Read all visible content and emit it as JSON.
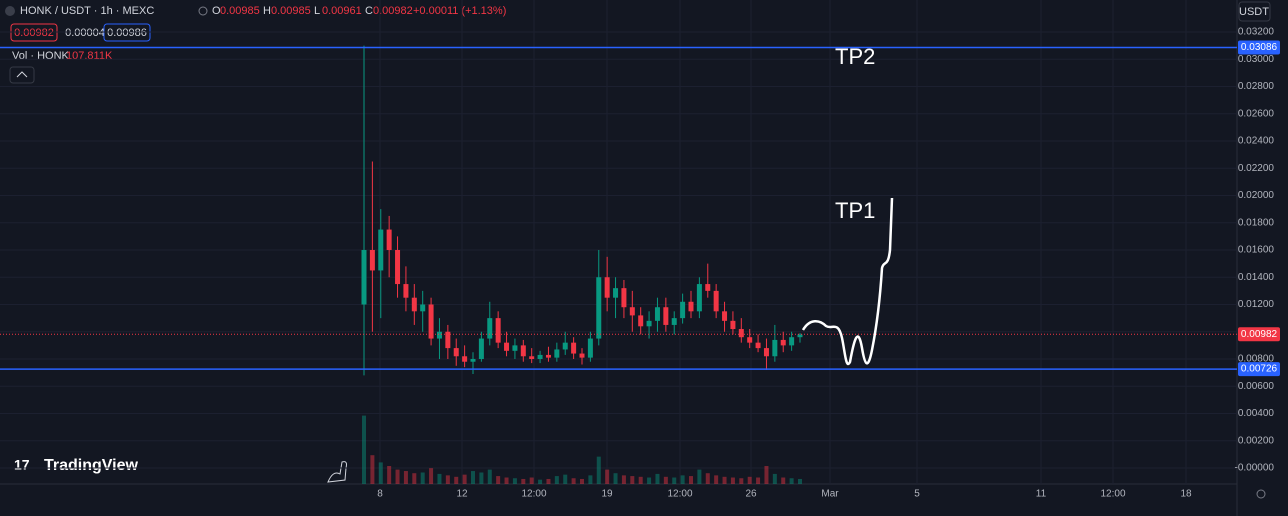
{
  "header": {
    "symbol": "HONK / USDT · 1h · MEXC",
    "ohlc": [
      {
        "key": "O",
        "value": "0.00985"
      },
      {
        "key": "H",
        "value": "0.00985"
      },
      {
        "key": "L",
        "value": "0.00961"
      },
      {
        "key": "C",
        "value": "0.00982"
      }
    ],
    "change": "+0.00011 (+1.13%)",
    "boxes": [
      "0.00982",
      "0.00004",
      "0.00986"
    ],
    "volume_label": "Vol · HONK",
    "volume_value": "107.811K",
    "currency": "USDT",
    "logo": "TradingView"
  },
  "chart_data": {
    "type": "candlestick",
    "annotations": [
      "TP2",
      "TP1"
    ],
    "ylim": [
      -0.0015,
      0.0335
    ],
    "yticks": [
      {
        "value": 0.032,
        "label": "0.03200"
      },
      {
        "value": 0.03,
        "label": "0.03000"
      },
      {
        "value": 0.028,
        "label": "0.02800"
      },
      {
        "value": 0.026,
        "label": "0.02600"
      },
      {
        "value": 0.024,
        "label": "0.02400"
      },
      {
        "value": 0.022,
        "label": "0.02200"
      },
      {
        "value": 0.02,
        "label": "0.02000"
      },
      {
        "value": 0.018,
        "label": "0.01800"
      },
      {
        "value": 0.016,
        "label": "0.01600"
      },
      {
        "value": 0.014,
        "label": "0.01400"
      },
      {
        "value": 0.012,
        "label": "0.01200"
      },
      {
        "value": 0.01,
        "label": "0.01000"
      },
      {
        "value": 0.008,
        "label": "0.00800"
      },
      {
        "value": 0.006,
        "label": "0.00600"
      },
      {
        "value": 0.004,
        "label": "0.00400"
      },
      {
        "value": 0.002,
        "label": "0.00200"
      },
      {
        "value": 0,
        "label": "-0.00000"
      }
    ],
    "price_lines": [
      {
        "value": 0.03086,
        "label": "0.03086",
        "color": "#2962ff"
      },
      {
        "value": 0.00982,
        "label": "0.00982",
        "color": "#f23645"
      },
      {
        "value": 0.00726,
        "label": "0.00726",
        "color": "#2962ff"
      }
    ],
    "x_labels": [
      "8",
      "12",
      "12:00",
      "19",
      "12:00",
      "26",
      "Mar",
      "5",
      "11",
      "12:00",
      "18"
    ],
    "up_color": "#089981",
    "down_color": "#f23645",
    "candles": [
      [
        0.012,
        0.031,
        0.0068,
        0.016
      ],
      [
        0.016,
        0.0225,
        0.01,
        0.0145
      ],
      [
        0.0145,
        0.019,
        0.011,
        0.0175
      ],
      [
        0.0175,
        0.0185,
        0.014,
        0.016
      ],
      [
        0.016,
        0.017,
        0.0125,
        0.0135
      ],
      [
        0.0135,
        0.0148,
        0.0115,
        0.0125
      ],
      [
        0.0125,
        0.0135,
        0.0105,
        0.0115
      ],
      [
        0.0115,
        0.013,
        0.01,
        0.012
      ],
      [
        0.012,
        0.0125,
        0.009,
        0.0095
      ],
      [
        0.0095,
        0.011,
        0.008,
        0.01
      ],
      [
        0.01,
        0.0105,
        0.008,
        0.0088
      ],
      [
        0.0088,
        0.0095,
        0.0075,
        0.0082
      ],
      [
        0.0082,
        0.009,
        0.0074,
        0.0078
      ],
      [
        0.0078,
        0.0085,
        0.0069,
        0.008
      ],
      [
        0.008,
        0.01,
        0.0078,
        0.0095
      ],
      [
        0.0095,
        0.0122,
        0.009,
        0.011
      ],
      [
        0.011,
        0.0115,
        0.0088,
        0.0092
      ],
      [
        0.0092,
        0.01,
        0.0082,
        0.0086
      ],
      [
        0.0086,
        0.0095,
        0.008,
        0.009
      ],
      [
        0.009,
        0.0094,
        0.0078,
        0.0082
      ],
      [
        0.0082,
        0.0088,
        0.0077,
        0.008
      ],
      [
        0.008,
        0.0086,
        0.0077,
        0.0083
      ],
      [
        0.0083,
        0.0089,
        0.0078,
        0.0081
      ],
      [
        0.0081,
        0.0092,
        0.0078,
        0.0087
      ],
      [
        0.0087,
        0.01,
        0.0083,
        0.0092
      ],
      [
        0.0092,
        0.0096,
        0.008,
        0.0084
      ],
      [
        0.0084,
        0.0088,
        0.0076,
        0.0081
      ],
      [
        0.0081,
        0.01,
        0.0078,
        0.0095
      ],
      [
        0.0095,
        0.016,
        0.009,
        0.014
      ],
      [
        0.014,
        0.0155,
        0.0115,
        0.0125
      ],
      [
        0.0125,
        0.014,
        0.011,
        0.0132
      ],
      [
        0.0132,
        0.0138,
        0.011,
        0.0118
      ],
      [
        0.0118,
        0.013,
        0.01,
        0.0112
      ],
      [
        0.0112,
        0.0118,
        0.0098,
        0.0104
      ],
      [
        0.0104,
        0.0115,
        0.0095,
        0.0108
      ],
      [
        0.0108,
        0.0125,
        0.01,
        0.0118
      ],
      [
        0.0118,
        0.0125,
        0.01,
        0.0105
      ],
      [
        0.0105,
        0.0115,
        0.0098,
        0.011
      ],
      [
        0.011,
        0.0128,
        0.0106,
        0.0122
      ],
      [
        0.0122,
        0.013,
        0.011,
        0.0115
      ],
      [
        0.0115,
        0.014,
        0.011,
        0.0135
      ],
      [
        0.0135,
        0.015,
        0.0125,
        0.013
      ],
      [
        0.013,
        0.0135,
        0.011,
        0.0115
      ],
      [
        0.0115,
        0.0122,
        0.01,
        0.0108
      ],
      [
        0.0108,
        0.0115,
        0.0098,
        0.0102
      ],
      [
        0.0102,
        0.011,
        0.0092,
        0.0096
      ],
      [
        0.0096,
        0.0102,
        0.0088,
        0.0092
      ],
      [
        0.0092,
        0.0098,
        0.0085,
        0.0088
      ],
      [
        0.0088,
        0.0095,
        0.0072,
        0.0082
      ],
      [
        0.0082,
        0.0105,
        0.0078,
        0.0094
      ],
      [
        0.0094,
        0.01,
        0.0085,
        0.009
      ],
      [
        0.009,
        0.01,
        0.0086,
        0.0096
      ],
      [
        0.0096,
        0.0099,
        0.0092,
        0.0098
      ]
    ],
    "volume_ylim": [
      0,
      1000
    ],
    "volume": [
      950,
      400,
      300,
      250,
      200,
      180,
      150,
      160,
      220,
      140,
      120,
      100,
      130,
      180,
      160,
      200,
      110,
      90,
      80,
      70,
      90,
      60,
      70,
      110,
      130,
      80,
      70,
      120,
      380,
      200,
      150,
      120,
      110,
      100,
      90,
      140,
      100,
      90,
      120,
      110,
      200,
      150,
      120,
      100,
      90,
      80,
      100,
      90,
      250,
      140,
      90,
      80,
      70
    ]
  }
}
